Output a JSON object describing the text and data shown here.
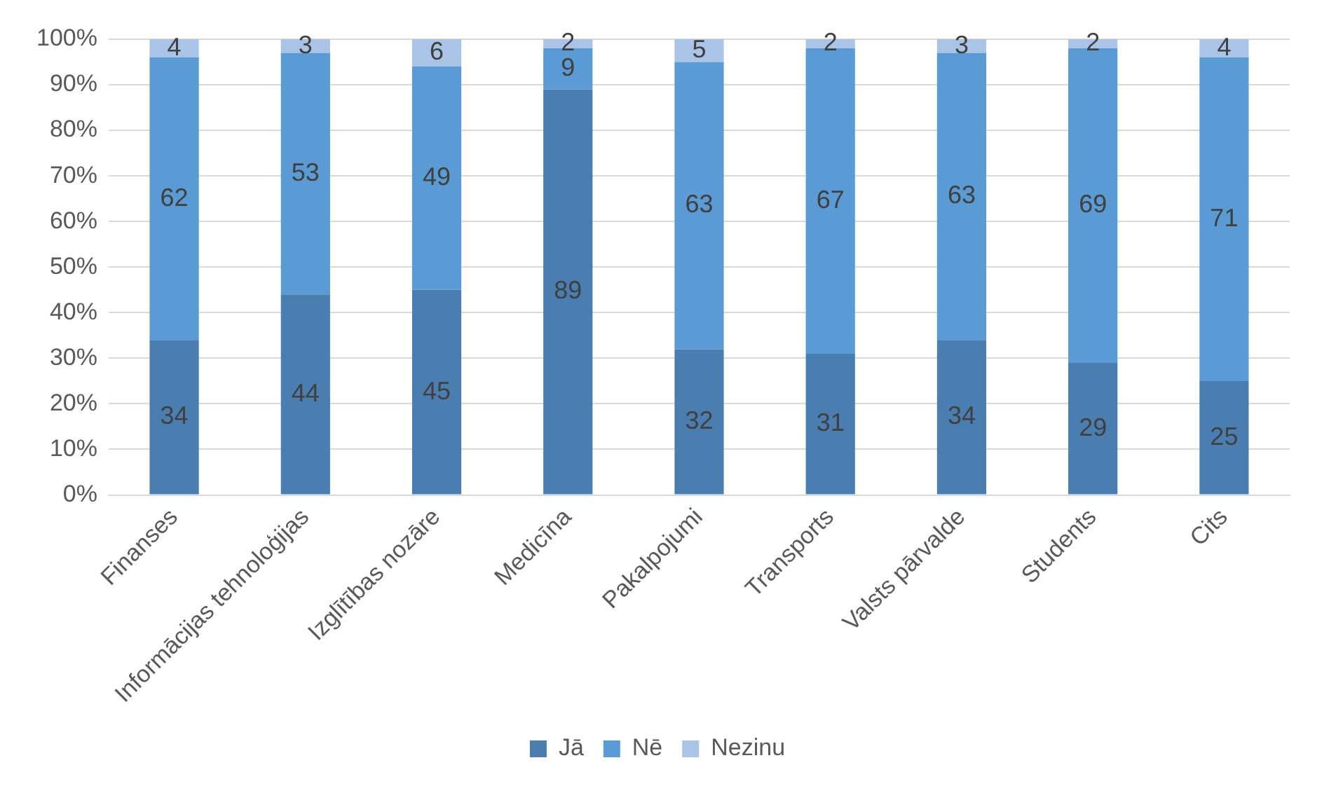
{
  "chart_data": {
    "type": "bar",
    "stacked": true,
    "categories": [
      "Finanses",
      "Informācijas tehnoloģijas",
      "Izglītības nozāre",
      "Medicīna",
      "Pakalpojumi",
      "Transports",
      "Valsts pārvalde",
      "Students",
      "Cits"
    ],
    "series": [
      {
        "name": "Jā",
        "color": "#4a7eb0",
        "values": [
          34,
          44,
          45,
          89,
          32,
          31,
          34,
          29,
          25
        ]
      },
      {
        "name": "Nē",
        "color": "#5b9bd5",
        "values": [
          62,
          53,
          49,
          9,
          63,
          67,
          63,
          69,
          71
        ]
      },
      {
        "name": "Nezinu",
        "color": "#a9c4e6",
        "values": [
          4,
          3,
          6,
          2,
          5,
          2,
          3,
          2,
          4
        ]
      }
    ],
    "ylim": [
      0,
      100
    ],
    "yticks": [
      {
        "value": 0,
        "label": "0%"
      },
      {
        "value": 10,
        "label": "10%"
      },
      {
        "value": 20,
        "label": "20%"
      },
      {
        "value": 30,
        "label": "30%"
      },
      {
        "value": 40,
        "label": "40%"
      },
      {
        "value": 50,
        "label": "50%"
      },
      {
        "value": 60,
        "label": "60%"
      },
      {
        "value": 70,
        "label": "70%"
      },
      {
        "value": 80,
        "label": "80%"
      },
      {
        "value": 90,
        "label": "90%"
      },
      {
        "value": 100,
        "label": "100%"
      }
    ],
    "grid": "y",
    "legend": "bottom",
    "data_labels": true
  }
}
